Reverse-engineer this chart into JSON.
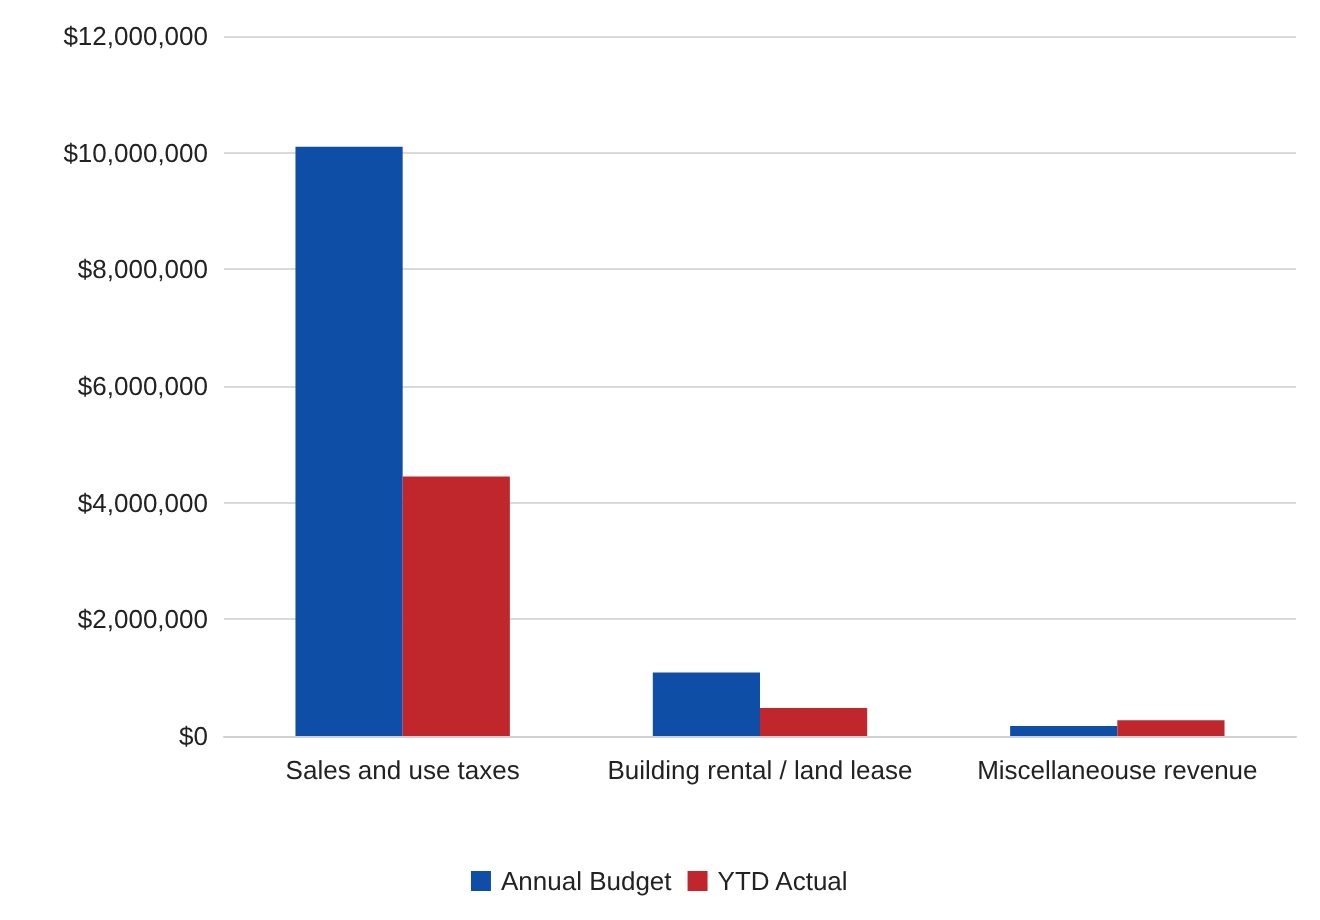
{
  "chart_data": {
    "type": "bar",
    "categories": [
      "Sales and use taxes",
      "Building rental / land lease",
      "Miscellaneouse revenue"
    ],
    "series": [
      {
        "name": "Annual Budget",
        "color": "#0f4ea6",
        "values": [
          10100000,
          1090000,
          170000
        ]
      },
      {
        "name": "YTD Actual",
        "color": "#c0272d",
        "values": [
          4450000,
          480000,
          270000
        ]
      }
    ],
    "ylim": [
      0,
      12000000
    ],
    "yticks": [
      {
        "value": 0,
        "label": "$0"
      },
      {
        "value": 2000000,
        "label": "$2,000,000"
      },
      {
        "value": 4000000,
        "label": "$4,000,000"
      },
      {
        "value": 6000000,
        "label": "$6,000,000"
      },
      {
        "value": 8000000,
        "label": "$8,000,000"
      },
      {
        "value": 10000000,
        "label": "$10,000,000"
      },
      {
        "value": 12000000,
        "label": "$12,000,000"
      }
    ],
    "grid": "y",
    "legend": "bottom"
  }
}
